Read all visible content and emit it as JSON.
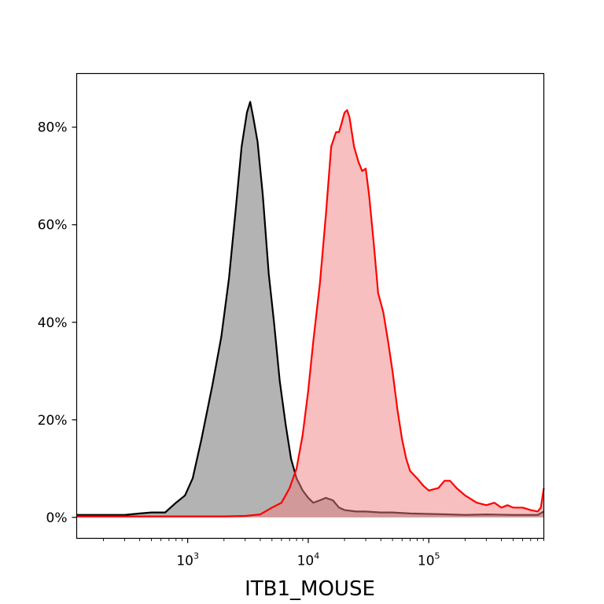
{
  "chart_data": {
    "type": "area",
    "title": "",
    "xlabel": "ITB1_MOUSE",
    "ylabel": "",
    "x_scale": "log",
    "xlim": [
      120,
      900000
    ],
    "ylim": [
      -0.043,
      0.91
    ],
    "grid": false,
    "y_ticks": [
      {
        "value": 0.0,
        "label": "0%"
      },
      {
        "value": 0.2,
        "label": "20%"
      },
      {
        "value": 0.4,
        "label": "40%"
      },
      {
        "value": 0.6,
        "label": "60%"
      },
      {
        "value": 0.8,
        "label": "80%"
      }
    ],
    "x_ticks": [
      {
        "value": 1000,
        "base": "10",
        "exp": "3"
      },
      {
        "value": 10000,
        "base": "10",
        "exp": "4"
      },
      {
        "value": 100000,
        "base": "10",
        "exp": "5"
      }
    ],
    "series": [
      {
        "stroke": "#000000",
        "fill": "#b3b3b3",
        "fill_opacity": 1,
        "points": [
          [
            120,
            0.005
          ],
          [
            200,
            0.005
          ],
          [
            300,
            0.005
          ],
          [
            400,
            0.008
          ],
          [
            500,
            0.01
          ],
          [
            650,
            0.01
          ],
          [
            800,
            0.03
          ],
          [
            950,
            0.045
          ],
          [
            1100,
            0.08
          ],
          [
            1300,
            0.16
          ],
          [
            1600,
            0.27
          ],
          [
            1900,
            0.37
          ],
          [
            2200,
            0.49
          ],
          [
            2500,
            0.63
          ],
          [
            2800,
            0.76
          ],
          [
            3100,
            0.83
          ],
          [
            3300,
            0.852
          ],
          [
            3500,
            0.82
          ],
          [
            3800,
            0.77
          ],
          [
            4200,
            0.66
          ],
          [
            4700,
            0.5
          ],
          [
            5200,
            0.4
          ],
          [
            5800,
            0.28
          ],
          [
            6500,
            0.19
          ],
          [
            7200,
            0.12
          ],
          [
            8000,
            0.08
          ],
          [
            9000,
            0.055
          ],
          [
            10000,
            0.04
          ],
          [
            11000,
            0.03
          ],
          [
            12500,
            0.035
          ],
          [
            14000,
            0.04
          ],
          [
            16000,
            0.035
          ],
          [
            18000,
            0.02
          ],
          [
            20000,
            0.015
          ],
          [
            25000,
            0.012
          ],
          [
            30000,
            0.012
          ],
          [
            40000,
            0.01
          ],
          [
            50000,
            0.01
          ],
          [
            70000,
            0.008
          ],
          [
            100000,
            0.007
          ],
          [
            150000,
            0.006
          ],
          [
            200000,
            0.005
          ],
          [
            300000,
            0.006
          ],
          [
            500000,
            0.005
          ],
          [
            700000,
            0.005
          ],
          [
            800000,
            0.005
          ],
          [
            900000,
            0.012
          ]
        ]
      },
      {
        "stroke": "#ff0000",
        "fill": "#f08080",
        "fill_opacity": 0.5,
        "points": [
          [
            120,
            0.002
          ],
          [
            1000,
            0.002
          ],
          [
            2000,
            0.002
          ],
          [
            3000,
            0.003
          ],
          [
            4000,
            0.006
          ],
          [
            5000,
            0.02
          ],
          [
            6000,
            0.03
          ],
          [
            7000,
            0.06
          ],
          [
            8000,
            0.1
          ],
          [
            9000,
            0.17
          ],
          [
            10000,
            0.26
          ],
          [
            11000,
            0.36
          ],
          [
            12500,
            0.48
          ],
          [
            14000,
            0.62
          ],
          [
            15500,
            0.76
          ],
          [
            17000,
            0.79
          ],
          [
            18000,
            0.79
          ],
          [
            19000,
            0.81
          ],
          [
            20000,
            0.83
          ],
          [
            21000,
            0.835
          ],
          [
            22000,
            0.82
          ],
          [
            24000,
            0.76
          ],
          [
            26000,
            0.73
          ],
          [
            28000,
            0.71
          ],
          [
            30000,
            0.715
          ],
          [
            32000,
            0.66
          ],
          [
            35000,
            0.56
          ],
          [
            38000,
            0.46
          ],
          [
            42000,
            0.42
          ],
          [
            46000,
            0.36
          ],
          [
            50000,
            0.3
          ],
          [
            55000,
            0.22
          ],
          [
            60000,
            0.16
          ],
          [
            65000,
            0.12
          ],
          [
            70000,
            0.095
          ],
          [
            80000,
            0.08
          ],
          [
            90000,
            0.065
          ],
          [
            100000,
            0.055
          ],
          [
            120000,
            0.06
          ],
          [
            135000,
            0.075
          ],
          [
            150000,
            0.075
          ],
          [
            170000,
            0.06
          ],
          [
            200000,
            0.045
          ],
          [
            250000,
            0.03
          ],
          [
            300000,
            0.025
          ],
          [
            350000,
            0.03
          ],
          [
            400000,
            0.02
          ],
          [
            450000,
            0.025
          ],
          [
            500000,
            0.02
          ],
          [
            600000,
            0.02
          ],
          [
            700000,
            0.015
          ],
          [
            800000,
            0.012
          ],
          [
            850000,
            0.02
          ],
          [
            900000,
            0.06
          ]
        ]
      }
    ]
  }
}
